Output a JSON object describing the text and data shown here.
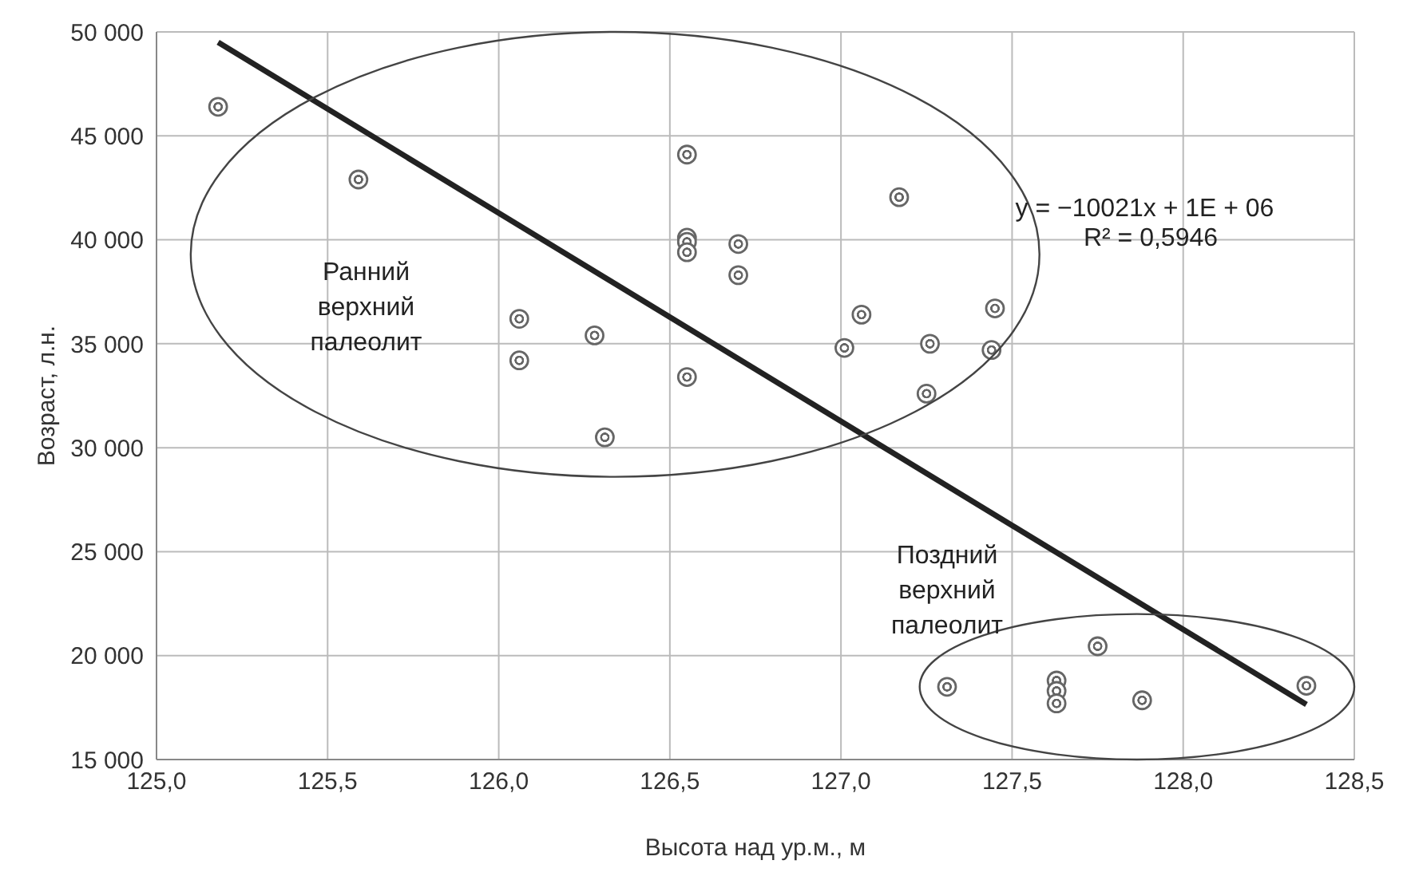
{
  "chart_data": {
    "type": "scatter",
    "xlabel": "Высота над ур.м., м",
    "ylabel": "Возраст, л.н.",
    "xlim": [
      125,
      128.5
    ],
    "xticks": [
      {
        "value": 125,
        "label": "125,0"
      },
      {
        "value": 125.5,
        "label": "125,5"
      },
      {
        "value": 126,
        "label": "126,0"
      },
      {
        "value": 126.5,
        "label": "126,5"
      },
      {
        "value": 127,
        "label": "127,0"
      },
      {
        "value": 127.5,
        "label": "127,5"
      },
      {
        "value": 128,
        "label": "128,0"
      },
      {
        "value": 128.5,
        "label": "128,5"
      }
    ],
    "ylim": [
      15000,
      50000
    ],
    "yticks": [
      {
        "value": 15000,
        "label": "15 000"
      },
      {
        "value": 20000,
        "label": "20 000"
      },
      {
        "value": 25000,
        "label": "25 000"
      },
      {
        "value": 30000,
        "label": "30 000"
      },
      {
        "value": 35000,
        "label": "35 000"
      },
      {
        "value": 40000,
        "label": "40 000"
      },
      {
        "value": 45000,
        "label": "45 000"
      },
      {
        "value": 50000,
        "label": "50 000"
      }
    ],
    "grid": true,
    "series": [
      {
        "marker": "circle",
        "color": "#666666",
        "x": [
          125.18,
          125.59,
          126.55,
          126.55,
          126.55,
          126.55,
          126.7,
          126.7,
          126.06,
          126.06,
          126.28,
          126.55,
          126.31,
          127.17,
          127.06,
          127.01,
          127.26,
          127.45,
          127.44,
          127.25,
          127.31,
          127.63,
          127.63,
          127.63,
          127.75,
          127.88,
          128.36
        ],
        "values": [
          46400,
          42900,
          44100,
          40100,
          39900,
          39400,
          39800,
          38300,
          36200,
          34200,
          35400,
          33400,
          30500,
          42050,
          36400,
          34800,
          35000,
          36700,
          34700,
          32600,
          18500,
          18800,
          18300,
          17700,
          20450,
          17850,
          18550
        ]
      },
      {
        "type": "line",
        "color": "#222222",
        "x": [
          125.18,
          128.36
        ],
        "values": [
          49500,
          17650
        ]
      }
    ],
    "annotations": [
      "y = −10021x + 1E + 06",
      "R² = 0,5946",
      "Ранний\nверхний\nпалеолит",
      "Поздний\nверхний\nпалеолит"
    ]
  }
}
